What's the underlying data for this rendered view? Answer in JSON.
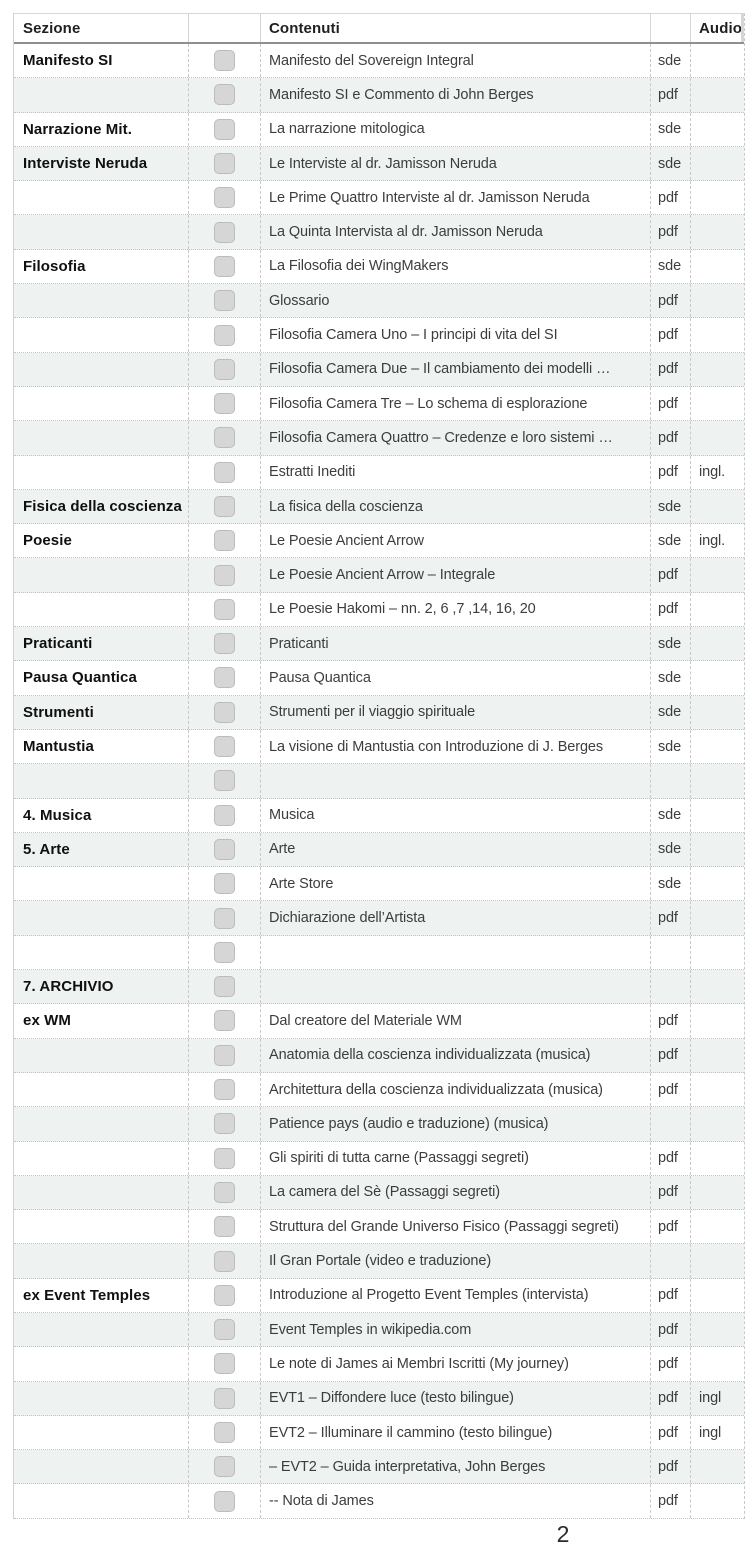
{
  "header": {
    "sezione": "Sezione",
    "contenuti": "Contenuti",
    "audio": "Audio"
  },
  "footer": {
    "page_number": "2"
  },
  "colors": {
    "row_tint": "#eef2f1",
    "checkbox_fill": "#d6d6d6"
  },
  "rows": [
    {
      "section": "Manifesto SI",
      "content": "Manifesto del Sovereign Integral",
      "type": "sde",
      "audio": ""
    },
    {
      "section": "",
      "content": "Manifesto SI e Commento di John Berges",
      "type": "pdf",
      "audio": ""
    },
    {
      "section": "Narrazione Mit.",
      "content": "La narrazione mitologica",
      "type": "sde",
      "audio": ""
    },
    {
      "section": "Interviste Neruda",
      "content": "Le Interviste al dr. Jamisson Neruda",
      "type": "sde",
      "audio": ""
    },
    {
      "section": "",
      "content": "Le Prime Quattro Interviste al dr. Jamisson Neruda",
      "type": "pdf",
      "audio": ""
    },
    {
      "section": "",
      "content": "La Quinta Intervista al dr. Jamisson Neruda",
      "type": "pdf",
      "audio": ""
    },
    {
      "section": "Filosofia",
      "content": "La Filosofia dei WingMakers",
      "type": "sde",
      "audio": ""
    },
    {
      "section": "",
      "content": "Glossario",
      "type": "pdf",
      "audio": ""
    },
    {
      "section": "",
      "content": "Filosofia Camera Uno – I principi di vita del SI",
      "type": "pdf",
      "audio": ""
    },
    {
      "section": "",
      "content": "Filosofia Camera Due – Il cambiamento dei modelli …",
      "type": "pdf",
      "audio": ""
    },
    {
      "section": "",
      "content": "Filosofia Camera Tre – Lo schema di esplorazione",
      "type": "pdf",
      "audio": ""
    },
    {
      "section": "",
      "content": "Filosofia Camera Quattro – Credenze e loro sistemi …",
      "type": "pdf",
      "audio": ""
    },
    {
      "section": "",
      "content": "Estratti Inediti",
      "type": "pdf",
      "audio": "ingl."
    },
    {
      "section": "Fisica della coscienza",
      "content": "La fisica della coscienza",
      "type": "sde",
      "audio": ""
    },
    {
      "section": "Poesie",
      "content": "Le Poesie Ancient Arrow",
      "type": "sde",
      "audio": "ingl."
    },
    {
      "section": "",
      "content": "Le Poesie Ancient Arrow – Integrale",
      "type": "pdf",
      "audio": ""
    },
    {
      "section": "",
      "content": "Le Poesie Hakomi – nn. 2, 6 ,7 ,14, 16, 20",
      "type": "pdf",
      "audio": ""
    },
    {
      "section": "Praticanti",
      "content": "Praticanti",
      "type": "sde",
      "audio": ""
    },
    {
      "section": "Pausa Quantica",
      "content": "Pausa Quantica",
      "type": "sde",
      "audio": ""
    },
    {
      "section": "Strumenti",
      "content": "Strumenti per il viaggio spirituale",
      "type": "sde",
      "audio": ""
    },
    {
      "section": "Mantustia",
      "content": "La visione di Mantustia con Introduzione di J. Berges",
      "type": "sde",
      "audio": ""
    },
    {
      "section": "",
      "content": "",
      "type": "",
      "audio": ""
    },
    {
      "section": "4. Musica",
      "content": "Musica",
      "type": "sde",
      "audio": ""
    },
    {
      "section": "5. Arte",
      "content": "Arte",
      "type": "sde",
      "audio": ""
    },
    {
      "section": "",
      "content": "Arte Store",
      "type": "sde",
      "audio": ""
    },
    {
      "section": "",
      "content": "Dichiarazione dell’Artista",
      "type": "pdf",
      "audio": ""
    },
    {
      "section": "",
      "content": "",
      "type": "",
      "audio": ""
    },
    {
      "section": "7. ARCHIVIO",
      "content": "",
      "type": "",
      "audio": ""
    },
    {
      "section": "ex WM",
      "content": "Dal creatore del Materiale WM",
      "type": "pdf",
      "audio": ""
    },
    {
      "section": "",
      "content": "Anatomia della coscienza individualizzata (musica)",
      "type": "pdf",
      "audio": ""
    },
    {
      "section": "",
      "content": "Architettura della coscienza individualizzata (musica)",
      "type": "pdf",
      "audio": ""
    },
    {
      "section": "",
      "content": "Patience pays (audio e traduzione) (musica)",
      "type": "",
      "audio": ""
    },
    {
      "section": "",
      "content": "Gli spiriti di tutta carne (Passaggi segreti)",
      "type": "pdf",
      "audio": ""
    },
    {
      "section": "",
      "content": "La camera del Sè (Passaggi segreti)",
      "type": "pdf",
      "audio": ""
    },
    {
      "section": "",
      "content": "Struttura del Grande Universo Fisico (Passaggi segreti)",
      "type": "pdf",
      "audio": ""
    },
    {
      "section": "",
      "content": "Il Gran Portale (video e traduzione)",
      "type": "",
      "audio": ""
    },
    {
      "section": "ex Event Temples",
      "content": "Introduzione al Progetto Event Temples (intervista)",
      "type": "pdf",
      "audio": ""
    },
    {
      "section": "",
      "content": "Event Temples in wikipedia.com",
      "type": "pdf",
      "audio": ""
    },
    {
      "section": "",
      "content": "Le note di James ai Membri Iscritti (My journey)",
      "type": "pdf",
      "audio": ""
    },
    {
      "section": "",
      "content": "EVT1 – Diffondere luce (testo bilingue)",
      "type": "pdf",
      "audio": "ingl"
    },
    {
      "section": "",
      "content": "EVT2 – Illuminare il cammino (testo bilingue)",
      "type": "pdf",
      "audio": "ingl"
    },
    {
      "section": "",
      "content": "– EVT2 – Guida interpretativa, John Berges",
      "type": "pdf",
      "audio": ""
    },
    {
      "section": "",
      "content": "-- Nota di James",
      "type": "pdf",
      "audio": ""
    }
  ]
}
